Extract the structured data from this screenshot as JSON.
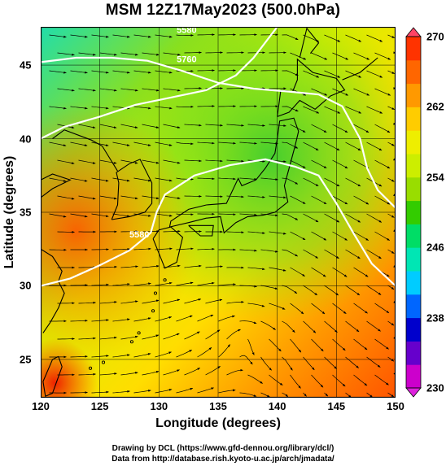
{
  "title": "MSM 12Z17May2023 (500.0hPa)",
  "xaxis": {
    "label": "Longitude (degrees)",
    "ticks": [
      "120",
      "125",
      "130",
      "135",
      "140",
      "145",
      "150"
    ],
    "range": [
      120,
      150
    ]
  },
  "yaxis": {
    "label": "Latitude  (degrees)",
    "ticks": [
      "25",
      "30",
      "35",
      "40",
      "45"
    ],
    "range": [
      22.4,
      47.6
    ]
  },
  "colorbar": {
    "ticks": [
      "230",
      "238",
      "246",
      "254",
      "262",
      "270"
    ],
    "range": [
      230,
      270
    ],
    "colors": [
      "#cc00cc",
      "#6600cc",
      "#0000cc",
      "#0066ff",
      "#00ccff",
      "#00e6b4",
      "#00dd66",
      "#33cc00",
      "#99dd00",
      "#ccee00",
      "#eeee00",
      "#ffcc00",
      "#ff9900",
      "#ff6600",
      "#ff3300"
    ]
  },
  "contours": [
    {
      "label": "5580",
      "lat_start": 30.0
    },
    {
      "label": "5760",
      "lat_start": 40.0
    },
    {
      "label": "5580",
      "lat_start": 43.2
    }
  ],
  "credits": {
    "line1": "Drawing by DCL (https://www.gfd-dennou.org/library/dcl/)",
    "line2": "Data from http://database.rish.kyoto-u.ac.jp/arch/jmadata/"
  },
  "colors": {
    "land_outline": "#000000",
    "contour": "#ffffff",
    "stream": "#000000"
  }
}
